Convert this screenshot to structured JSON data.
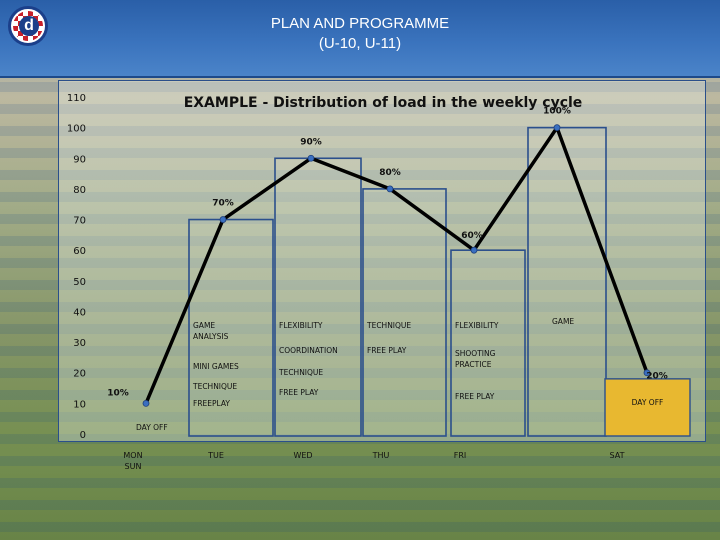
{
  "header": {
    "title_line1": "PLAN AND PROGRAMME",
    "title_line2": "(U-10, U-11)",
    "logo_letter": "d"
  },
  "chart_data": {
    "type": "line",
    "title_bold": "EXAMPLE",
    "title_rest": " - Distribution of load in the weekly cycle",
    "categories": [
      "MON SUN",
      "TUE",
      "WED",
      "THU",
      "FRI",
      "SAT",
      ""
    ],
    "category_lines": [
      [
        "MON",
        "SUN"
      ],
      [
        "TUE"
      ],
      [
        "WED"
      ],
      [
        "THU"
      ],
      [
        "FRI"
      ],
      [
        "SAT"
      ],
      [
        ""
      ]
    ],
    "values": [
      10,
      70,
      90,
      80,
      60,
      100,
      20
    ],
    "point_labels": [
      "10%",
      "70%",
      "90%",
      "80%",
      "60%",
      "100%",
      "20%"
    ],
    "ylim": [
      0,
      110
    ],
    "yticks": [
      0,
      10,
      20,
      30,
      40,
      50,
      60,
      70,
      80,
      90,
      100,
      110
    ],
    "bars": [
      {
        "category": "MON SUN",
        "value": 0,
        "items": [
          "DAY OFF"
        ],
        "style": "plain"
      },
      {
        "category": "TUE",
        "value": 70,
        "items": [
          "GAME ANALYSIS",
          "MINI GAMES",
          "TECHNIQUE",
          "FREEPLAY"
        ],
        "style": "outline"
      },
      {
        "category": "WED",
        "value": 90,
        "items": [
          "FLEXIBILITY",
          "COORDINATION",
          "TECHNIQUE",
          "FREE PLAY"
        ],
        "style": "outline"
      },
      {
        "category": "THU",
        "value": 80,
        "items": [
          "TECHNIQUE",
          "FREE PLAY"
        ],
        "style": "outline"
      },
      {
        "category": "FRI",
        "value": 60,
        "items": [
          "FLEXIBILITY",
          "SHOOTING PRACTICE",
          "FREE PLAY"
        ],
        "style": "outline"
      },
      {
        "category": "SAT",
        "value": 100,
        "items": [
          "GAME"
        ],
        "style": "outline"
      },
      {
        "category": "",
        "value": 18,
        "items": [
          "DAY OFF"
        ],
        "style": "filled"
      }
    ],
    "colors": {
      "line": "#000000",
      "marker": "#3a6fc0",
      "bar_outline": "#2b4f8c",
      "day_off_fill": "#e8b830"
    },
    "grid": false,
    "legend": "none"
  }
}
